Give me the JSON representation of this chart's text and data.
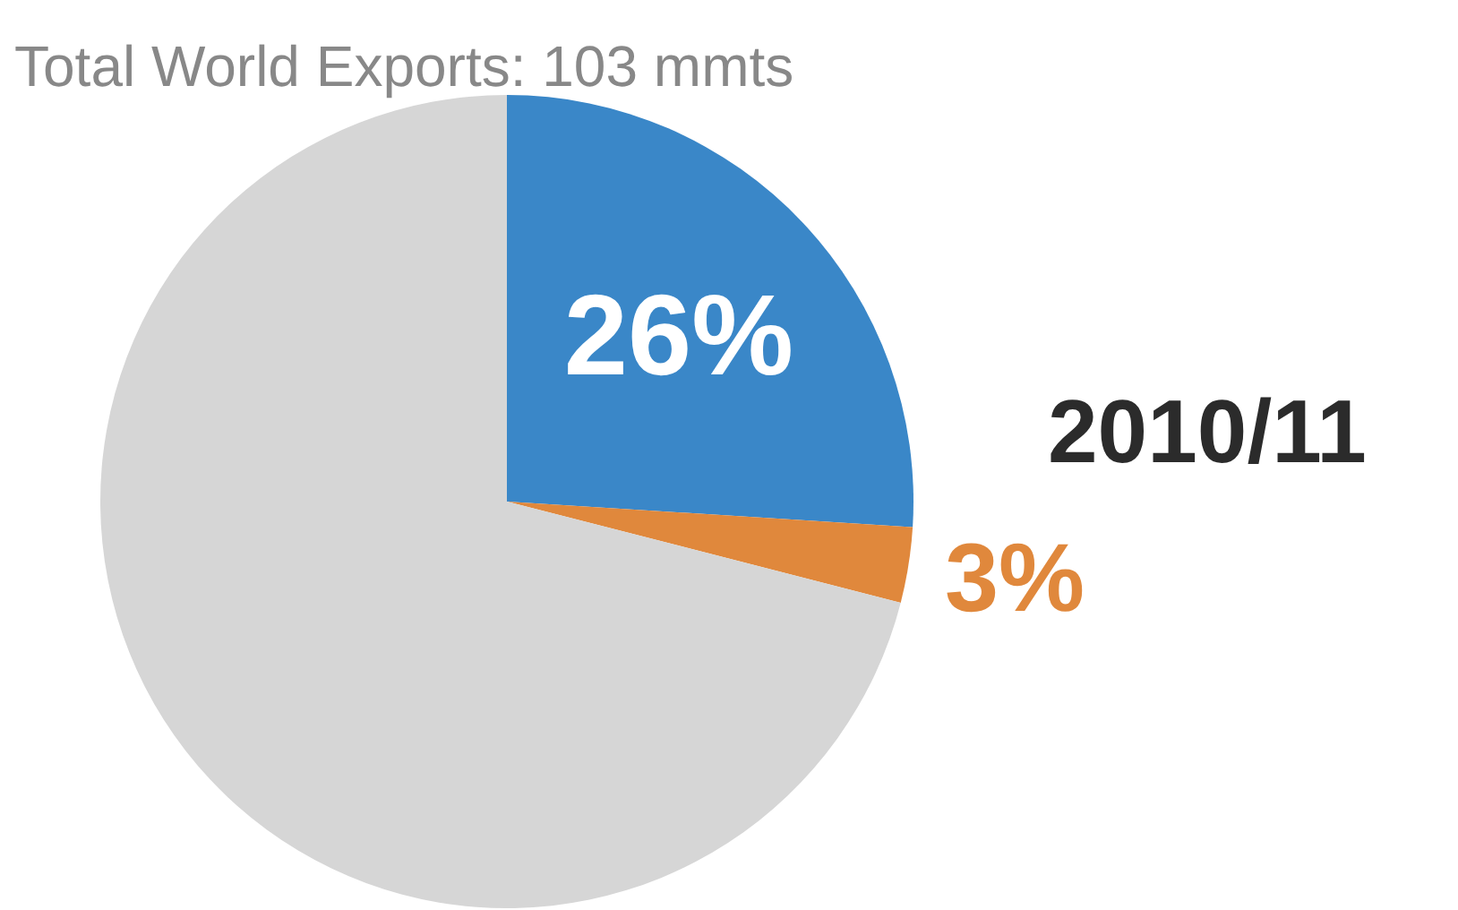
{
  "chart_data": {
    "type": "pie",
    "title": "Total World Exports: 103 mmts",
    "annotations": [
      "2010/11"
    ],
    "categories": [
      null,
      null,
      null
    ],
    "values": [
      26,
      3,
      71
    ],
    "colors": [
      "#3a87c8",
      "#e0883c",
      "#d6d6d6"
    ],
    "value_labels": [
      "26%",
      "3%",
      null
    ]
  }
}
